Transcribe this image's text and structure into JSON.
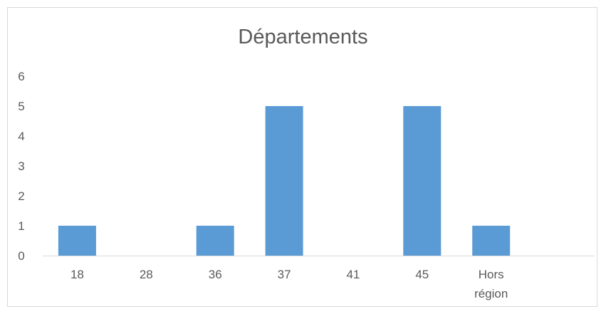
{
  "chart_data": {
    "type": "bar",
    "title": "Départements",
    "xlabel": "",
    "ylabel": "",
    "categories": [
      "18",
      "28",
      "36",
      "37",
      "41",
      "45",
      "Hors région",
      ""
    ],
    "category_lines": [
      [
        "18"
      ],
      [
        "28"
      ],
      [
        "36"
      ],
      [
        "37"
      ],
      [
        "41"
      ],
      [
        "45"
      ],
      [
        "Hors",
        "région"
      ],
      [
        ""
      ]
    ],
    "series": [
      {
        "values": [
          1,
          0,
          1,
          5,
          0,
          5,
          1,
          0
        ]
      }
    ],
    "ylim": [
      0,
      6
    ],
    "yticks": [
      0,
      1,
      2,
      3,
      4,
      5,
      6
    ],
    "grid": false,
    "legend": "none",
    "colors": {
      "bar": "#5b9bd5",
      "axis": "#d9d9d9",
      "text": "#595959"
    }
  }
}
